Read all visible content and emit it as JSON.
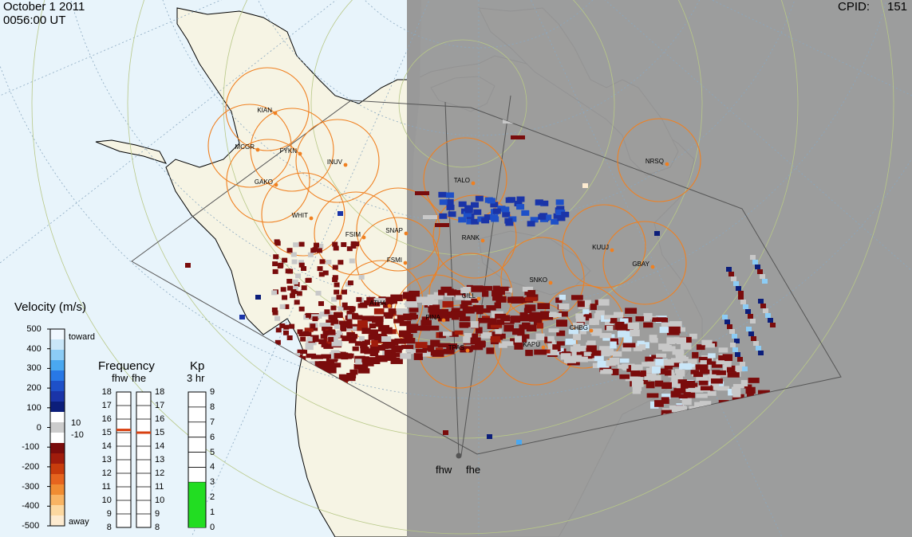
{
  "header": {
    "date": "October 1 2011",
    "time": "0056:00 UT",
    "cpid_label": "CPID:",
    "cpid_value": "151"
  },
  "radars": {
    "site_a": "fhw",
    "site_b": "fhe"
  },
  "stations": [
    "KIAN",
    "MCGR",
    "FYKN",
    "INUV",
    "GAKO",
    "WHIT",
    "FSIM",
    "SNAP",
    "FSMI",
    "TALO",
    "RANK",
    "NRSQ",
    "KUUJ",
    "GBAY",
    "SNKO",
    "GILL",
    "ATHA",
    "PINA",
    "CHBG",
    "KAPU",
    "TPAS"
  ],
  "velocity_scale": {
    "title": "Velocity (m/s)",
    "ticks": [
      "500",
      "400",
      "300",
      "200",
      "100",
      "0",
      "-100",
      "-200",
      "-300",
      "-400",
      "-500"
    ],
    "toward_label": "toward",
    "away_label": "away",
    "threshold_pos": "10",
    "threshold_neg": "-10",
    "colors": {
      "toward": [
        "#f0f8ff",
        "#c9e6f8",
        "#8cccf5",
        "#4aa8f0",
        "#2878e6",
        "#1e50c8",
        "#1a34a8",
        "#0c1e7a"
      ],
      "away": [
        "#7a0c0c",
        "#a01c0c",
        "#c83c0c",
        "#e6641e",
        "#f08c32",
        "#f8b464",
        "#fcd8a0",
        "#fdebd0"
      ]
    }
  },
  "frequency_panel": {
    "title": "Frequency",
    "col_a": "fhw",
    "col_b": "fhe",
    "ticks": [
      "18",
      "17",
      "16",
      "15",
      "14",
      "13",
      "12",
      "11",
      "10",
      "9",
      "8"
    ],
    "fhw_value": 15.2,
    "fhe_value": 15.0,
    "marker_color": "#d84010"
  },
  "kp_panel": {
    "title": "Kp",
    "subtitle": "3 hr",
    "ticks": [
      "9",
      "8",
      "7",
      "6",
      "5",
      "4",
      "3",
      "2",
      "1",
      "0"
    ],
    "value": 3,
    "fill_color": "#22dd22"
  },
  "map_colors": {
    "ocean": "#e8f4fb",
    "land": "#f6f4e4",
    "night": "#999999",
    "scatter_ground": "#c8c8c8",
    "circle": "#f08020"
  }
}
